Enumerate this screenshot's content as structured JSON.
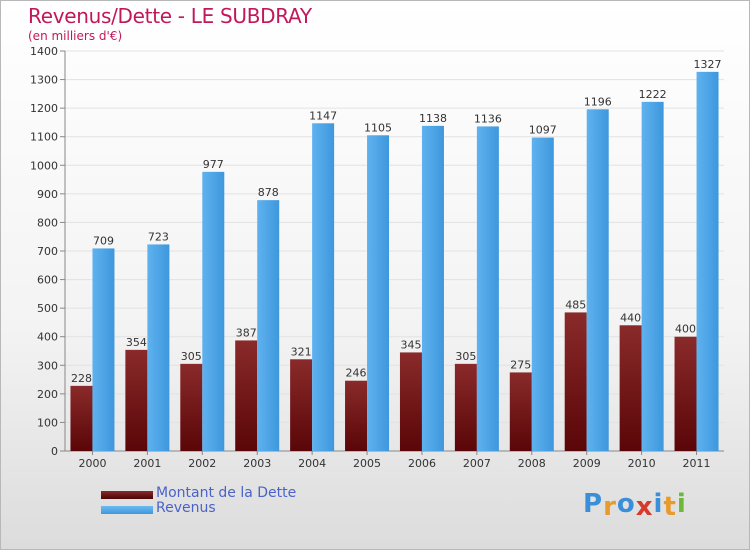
{
  "chart_data": {
    "type": "bar",
    "title": "Revenus/Dette - LE SUBDRAY",
    "subtitle": "(en milliers d'€)",
    "categories": [
      "2000",
      "2001",
      "2002",
      "2003",
      "2004",
      "2005",
      "2006",
      "2007",
      "2008",
      "2009",
      "2010",
      "2011"
    ],
    "series": [
      {
        "name": "Montant de la Dette",
        "color": "#6b0f14",
        "values": [
          228,
          354,
          305,
          387,
          321,
          246,
          345,
          305,
          275,
          485,
          440,
          400
        ]
      },
      {
        "name": "Revenus",
        "color": "#4aa3e6",
        "values": [
          709,
          723,
          977,
          878,
          1147,
          1105,
          1138,
          1136,
          1097,
          1196,
          1222,
          1327
        ]
      }
    ],
    "ylim": [
      0,
      1400
    ],
    "yticks": [
      0,
      100,
      200,
      300,
      400,
      500,
      600,
      700,
      800,
      900,
      1000,
      1100,
      1200,
      1300,
      1400
    ],
    "grid": true,
    "legend_position": "bottom-left"
  },
  "branding": {
    "logo_letters": [
      "P",
      "r",
      "o",
      "x",
      "i",
      "t",
      "i"
    ],
    "logo_colors": [
      "#3a8fd8",
      "#e89a2a",
      "#3a8fd8",
      "#d83a2a",
      "#3a8fd8",
      "#e89a2a",
      "#6cb83a"
    ]
  }
}
